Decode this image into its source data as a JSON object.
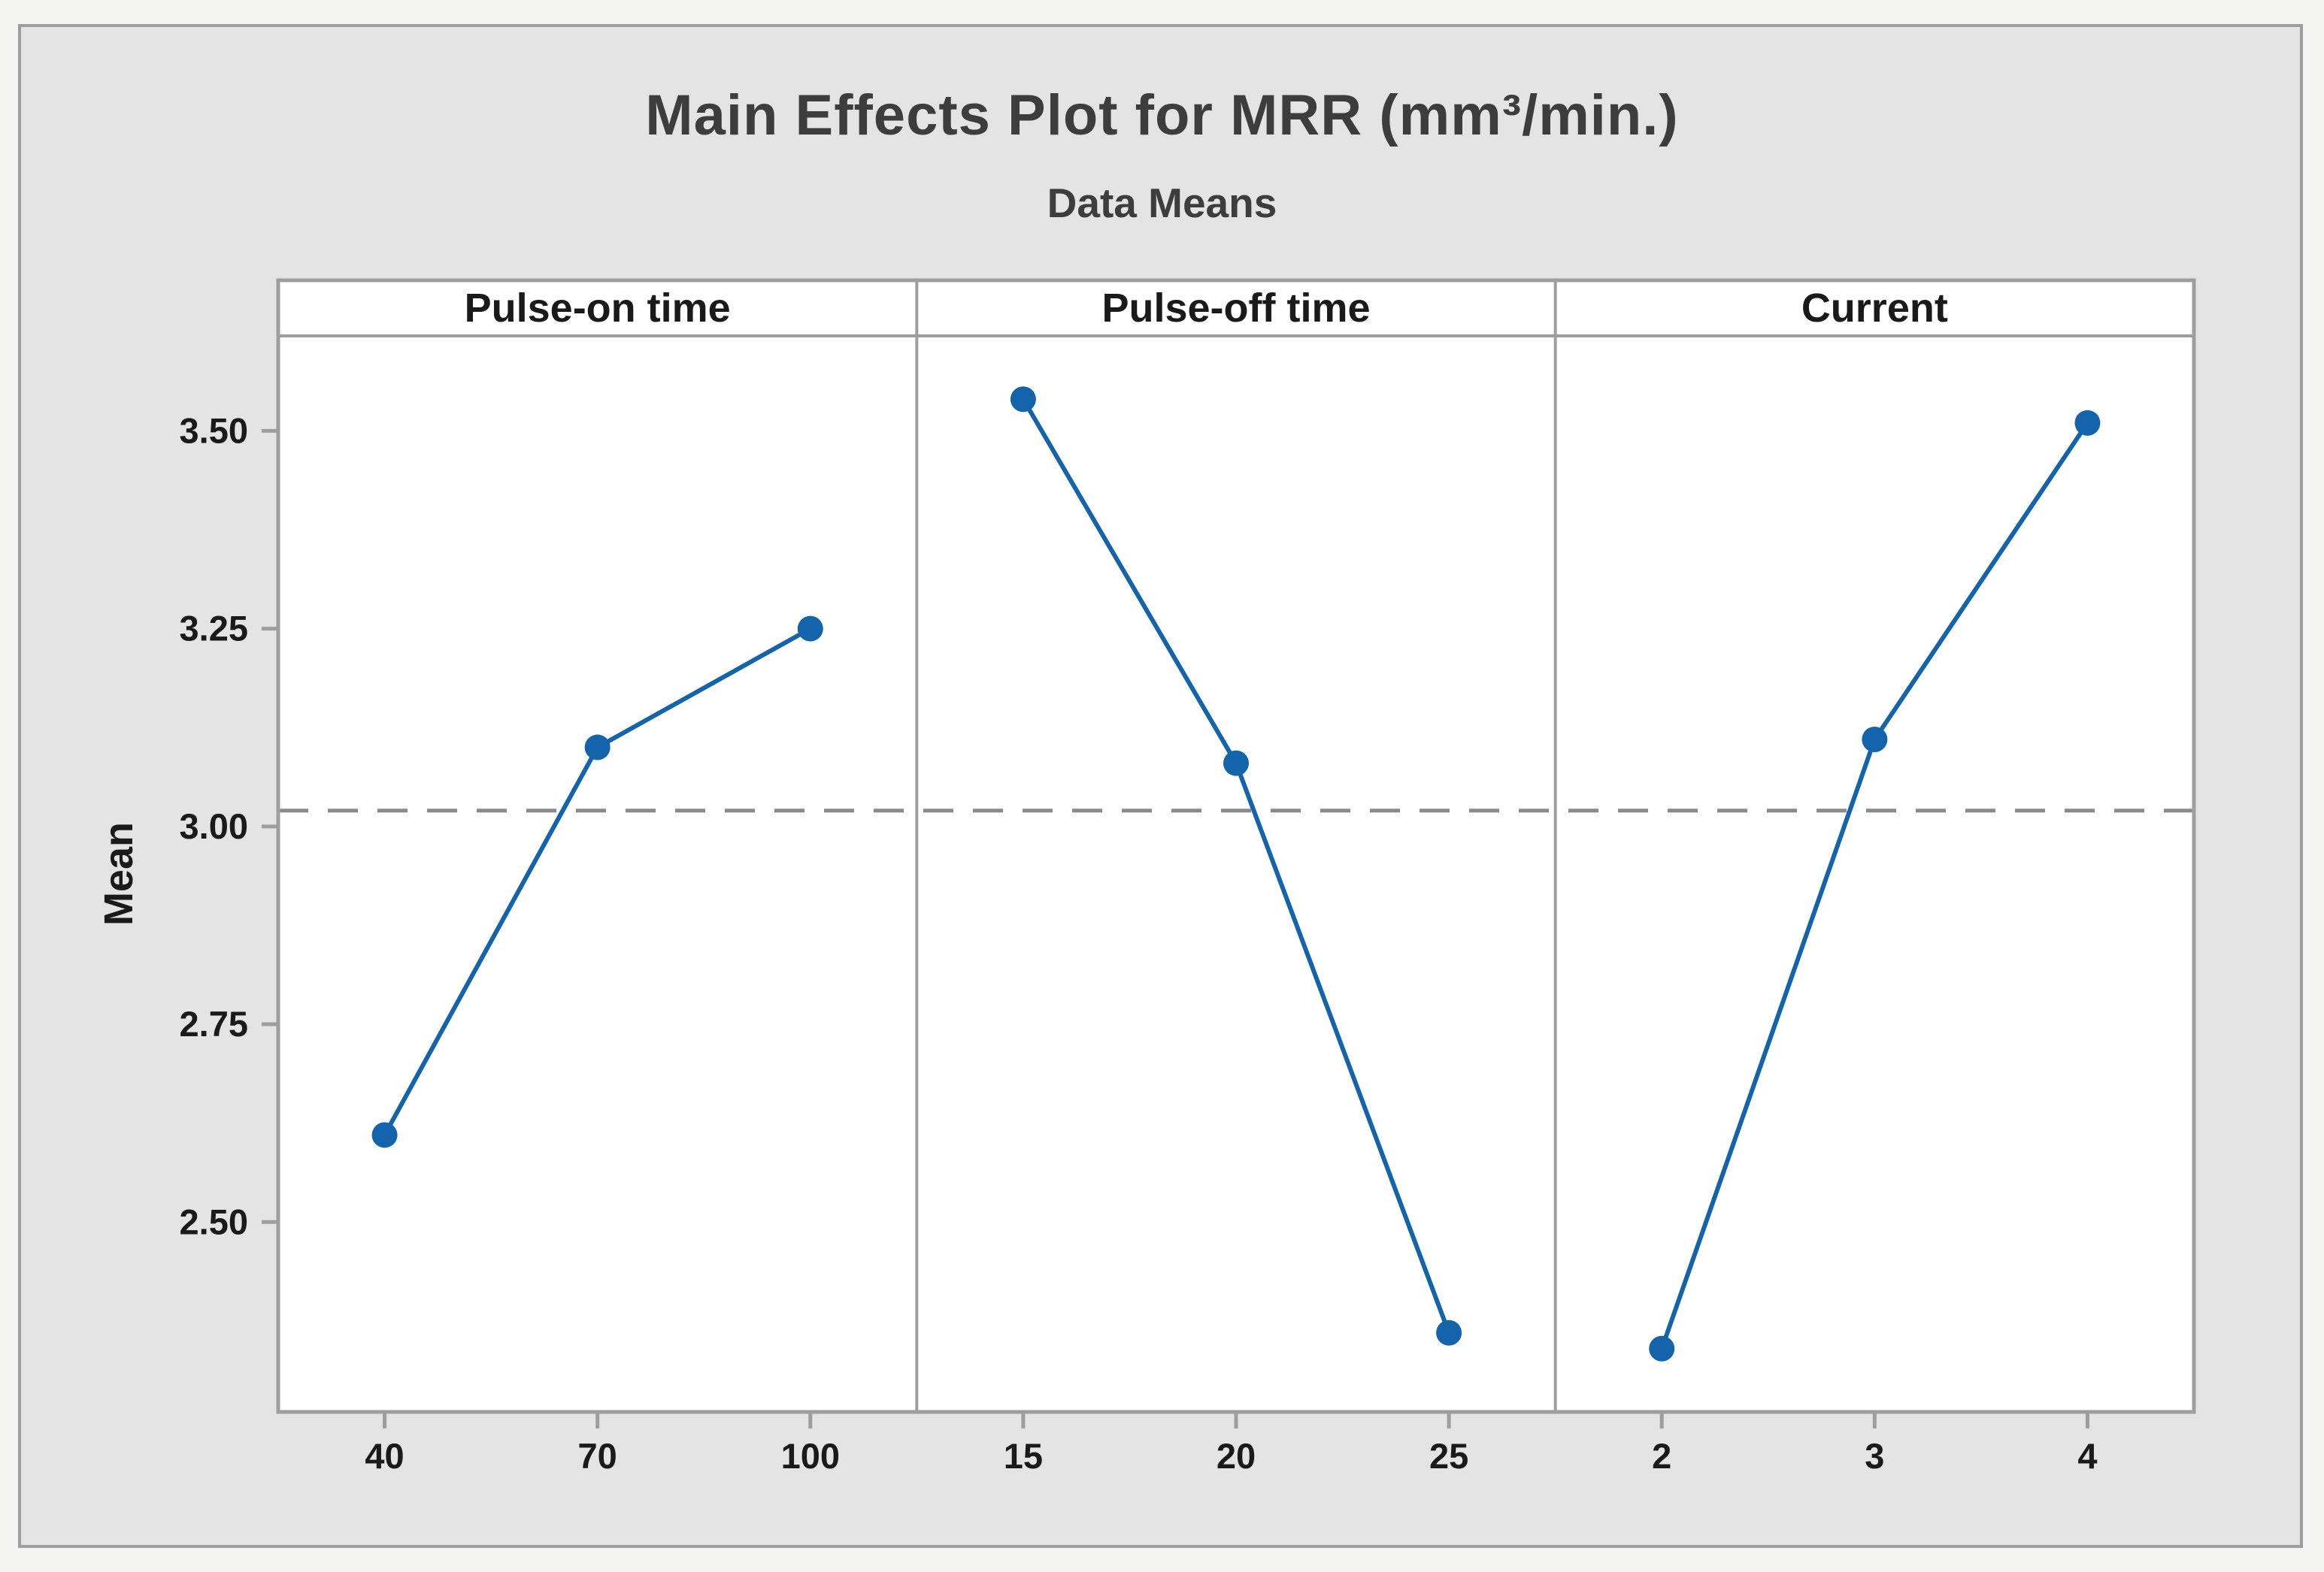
{
  "chart_data": {
    "type": "line",
    "title": "Main Effects Plot for MRR (mm³/min.)",
    "subtitle": "Data Means",
    "ylabel": "Mean",
    "yticks": [
      "3.50",
      "3.25",
      "3.00",
      "2.75",
      "2.50"
    ],
    "ytick_values": [
      3.5,
      3.25,
      3.0,
      2.75,
      2.5
    ],
    "ylim": [
      2.26,
      3.62
    ],
    "grand_mean_line": 3.02,
    "grid": "off",
    "legend": "none",
    "line_color": "#1464ac",
    "marker_color": "#1464ac",
    "reference_line_color": "#8a8a8a",
    "axis_color": "#9e9e9e",
    "panels": [
      {
        "label": "Pulse-on time",
        "categories": [
          "40",
          "70",
          "100"
        ],
        "values": [
          2.61,
          3.1,
          3.25
        ]
      },
      {
        "label": "Pulse-off time",
        "categories": [
          "15",
          "20",
          "25"
        ],
        "values": [
          3.54,
          3.08,
          2.36
        ]
      },
      {
        "label": "Current",
        "categories": [
          "2",
          "3",
          "4"
        ],
        "values": [
          2.34,
          3.11,
          3.51
        ]
      }
    ]
  }
}
